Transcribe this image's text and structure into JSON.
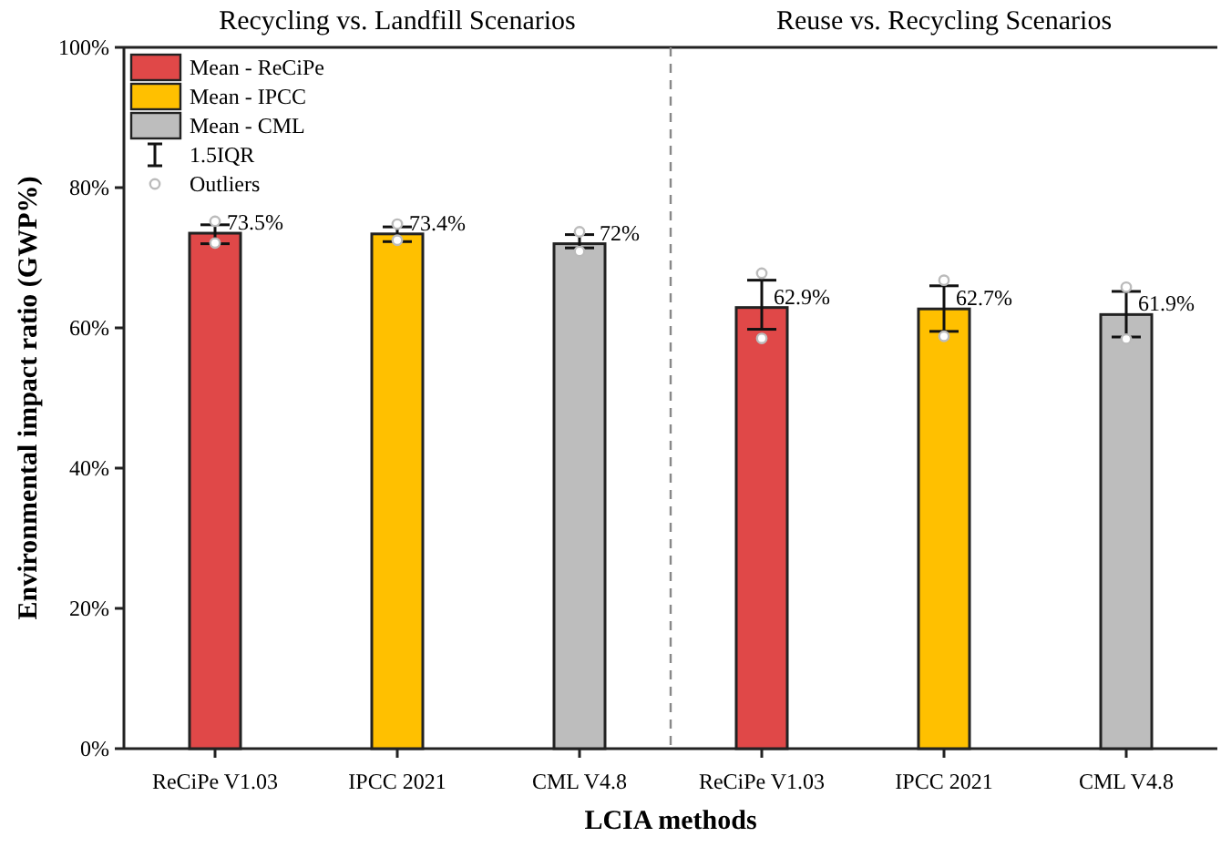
{
  "chart_data": [
    {
      "type": "bar",
      "title": "Recycling vs. Landfill Scenarios",
      "xlabel": "LCIA methods",
      "ylabel": "Environmental impact ratio (GWP%)",
      "categories": [
        "ReCiPe V1.03",
        "IPCC 2021",
        "CML V4.8"
      ],
      "ylim": [
        0,
        100
      ],
      "yticks": [
        {
          "value": 0,
          "label": "0%"
        },
        {
          "value": 20,
          "label": "20%"
        },
        {
          "value": 40,
          "label": "40%"
        },
        {
          "value": 60,
          "label": "60%"
        },
        {
          "value": 80,
          "label": "80%"
        },
        {
          "value": 100,
          "label": "100%"
        }
      ],
      "legend": "top left",
      "grid": false,
      "annotations": [
        "1.5IQR"
      ],
      "series": [
        {
          "name": "Mean - ReCiPe",
          "color": "#e04848",
          "x": [
            "ReCiPe V1.03"
          ],
          "values": [
            73.5
          ],
          "errors": [
            [
              72.0,
              74.7
            ]
          ],
          "value_labels": [
            "73.5%"
          ]
        },
        {
          "name": "Mean - IPCC",
          "color": "#ffc000",
          "x": [
            "IPCC 2021"
          ],
          "values": [
            73.4
          ],
          "errors": [
            [
              72.3,
              74.4
            ]
          ],
          "value_labels": [
            "73.4%"
          ]
        },
        {
          "name": "Mean - CML",
          "color": "#bdbdbd",
          "x": [
            "CML V4.8"
          ],
          "values": [
            72
          ],
          "errors": [
            [
              71.4,
              73.3
            ]
          ],
          "value_labels": [
            "72%"
          ]
        },
        {
          "name": "Outliers",
          "type": "scatter",
          "marker": "circle",
          "color": "#bbbbbb",
          "x": [
            "ReCiPe V1.03",
            "ReCiPe V1.03",
            "IPCC 2021",
            "IPCC 2021",
            "CML V4.8",
            "CML V4.8"
          ],
          "values": [
            75.2,
            72.1,
            74.8,
            72.5,
            73.7,
            70.9
          ]
        }
      ]
    },
    {
      "type": "bar",
      "title": "Reuse vs. Recycling Scenarios",
      "categories": [
        "ReCiPe V1.03",
        "IPCC 2021",
        "CML V4.8"
      ],
      "ylim": [
        0,
        100
      ],
      "tick_labels": "x",
      "grid": false,
      "series": [
        {
          "color": "#e04848",
          "x": [
            "ReCiPe V1.03"
          ],
          "values": [
            62.9
          ],
          "errors": [
            [
              59.8,
              66.8
            ]
          ],
          "value_labels": [
            "62.9%"
          ]
        },
        {
          "color": "#ffc000",
          "x": [
            "IPCC 2021"
          ],
          "values": [
            62.7
          ],
          "errors": [
            [
              59.5,
              66.0
            ]
          ],
          "value_labels": [
            "62.7%"
          ]
        },
        {
          "color": "#bdbdbd",
          "x": [
            "CML V4.8"
          ],
          "values": [
            61.9
          ],
          "errors": [
            [
              58.7,
              65.2
            ]
          ],
          "value_labels": [
            "61.9%"
          ]
        },
        {
          "type": "scatter",
          "marker": "circle",
          "color": "#bbbbbb",
          "x": [
            "ReCiPe V1.03",
            "ReCiPe V1.03",
            "IPCC 2021",
            "IPCC 2021",
            "CML V4.8",
            "CML V4.8"
          ],
          "values": [
            67.8,
            58.5,
            66.8,
            58.8,
            65.8,
            58.4
          ]
        }
      ]
    }
  ]
}
